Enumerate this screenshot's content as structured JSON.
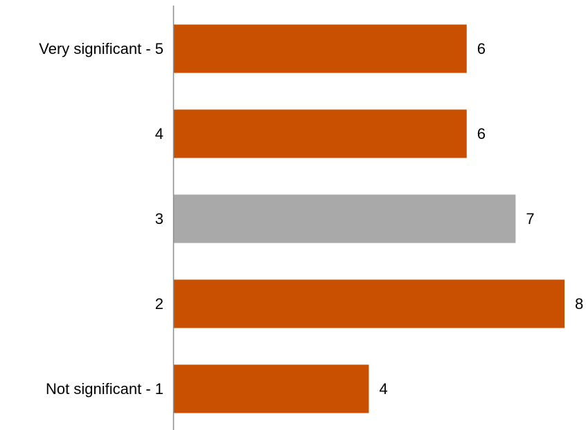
{
  "chart_data": {
    "type": "bar",
    "orientation": "horizontal",
    "categories": [
      "Very significant - 5",
      "4",
      "3",
      "2",
      "Not significant - 1"
    ],
    "values": [
      6,
      6,
      7,
      8,
      4
    ],
    "data_labels": [
      "6",
      "6",
      "7",
      "8",
      "4"
    ],
    "bar_colors": [
      "#c95000",
      "#c95000",
      "#a9a9a9",
      "#c95000",
      "#c95000"
    ],
    "xlim": [
      0,
      8
    ],
    "grid": false,
    "legend": "none",
    "title": "",
    "xlabel": "",
    "ylabel": ""
  },
  "colors": {
    "primary_bar": "#c95000",
    "neutral_bar": "#a9a9a9",
    "axis": "#8c8c8c"
  }
}
